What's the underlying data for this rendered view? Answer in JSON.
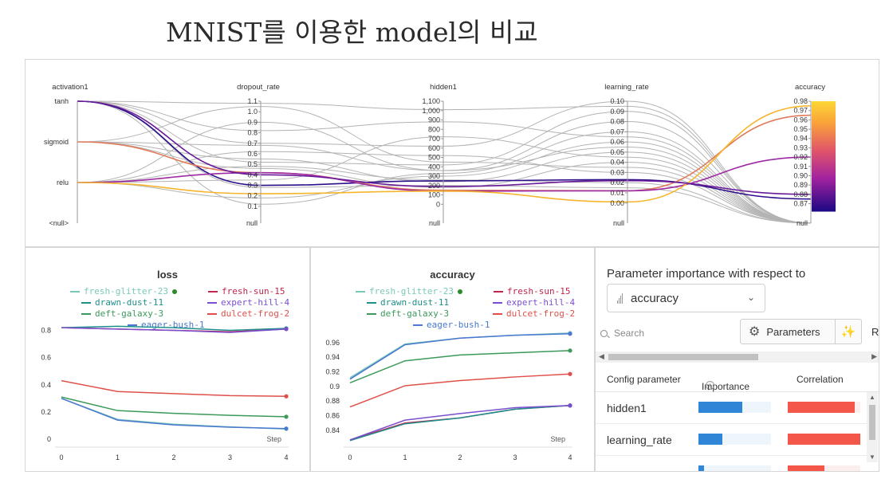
{
  "page_title": "MNIST를 이용한 model의 비교",
  "parallel_coords": {
    "axes": [
      "activation1",
      "dropout_rate",
      "hidden1",
      "learning_rate",
      "accuracy"
    ],
    "activation_ticks": [
      "tanh",
      "sigmoid",
      "relu",
      "<null>"
    ],
    "dropout_ticks": [
      "1.1",
      "1.0",
      "0.9",
      "0.8",
      "0.7",
      "0.6",
      "0.5",
      "0.4",
      "0.3",
      "0.2",
      "0.1",
      "null"
    ],
    "hidden_ticks": [
      "1,100",
      "1,000",
      "900",
      "800",
      "700",
      "600",
      "500",
      "400",
      "300",
      "200",
      "100",
      "0",
      "null"
    ],
    "lr_ticks": [
      "0.10",
      "0.09",
      "0.08",
      "0.07",
      "0.06",
      "0.05",
      "0.04",
      "0.03",
      "0.02",
      "0.01",
      "0.00",
      "null"
    ],
    "accuracy_ticks": [
      "0.98",
      "0.97",
      "0.96",
      "0.95",
      "0.94",
      "0.93",
      "0.92",
      "0.91",
      "0.90",
      "0.89",
      "0.88",
      "0.87",
      "null"
    ],
    "highlighted_runs": [
      {
        "activation": "tanh",
        "dropout_rate": 0.3,
        "hidden1": 250,
        "learning_rate": 0.023,
        "accuracy": 0.875,
        "color": "#2c0f8a"
      },
      {
        "activation": "sigmoid",
        "dropout_rate": 0.42,
        "hidden1": 150,
        "learning_rate": 0.012,
        "accuracy": 0.965,
        "color": "#e07b5a"
      },
      {
        "activation": "relu",
        "dropout_rate": 0.42,
        "hidden1": 140,
        "learning_rate": 0.012,
        "accuracy": 0.92,
        "color": "#9c2aa3"
      },
      {
        "activation": "relu",
        "dropout_rate": 0.22,
        "hidden1": 140,
        "learning_rate": 0.001,
        "accuracy": 0.975,
        "color": "#f7b52c"
      },
      {
        "activation": "tanh",
        "dropout_rate": 0.4,
        "hidden1": 190,
        "learning_rate": 0.022,
        "accuracy": 0.88,
        "color": "#6a1b9a"
      }
    ],
    "gray_runs": [
      [
        "tanh",
        1.08,
        1010,
        0.095
      ],
      [
        "tanh",
        0.7,
        620,
        0.1
      ],
      [
        "tanh",
        0.52,
        420,
        0.09
      ],
      [
        "tanh",
        0.12,
        330,
        0.07
      ],
      [
        "tanh",
        0.82,
        880,
        0.065
      ],
      [
        "sigmoid",
        0.68,
        360,
        0.055
      ],
      [
        "sigmoid",
        0.55,
        240,
        0.05
      ],
      [
        "sigmoid",
        0.46,
        180,
        0.04
      ],
      [
        "sigmoid",
        1.05,
        450,
        0.035
      ],
      [
        "relu",
        0.62,
        520,
        0.03
      ],
      [
        "relu",
        0.18,
        300,
        0.06
      ],
      [
        "relu",
        0.9,
        360,
        0.08
      ],
      [
        "relu",
        0.35,
        720,
        0.045
      ],
      [
        "relu",
        0.48,
        260,
        0.02
      ],
      [
        "tanh",
        0.28,
        200,
        0.015
      ]
    ]
  },
  "loss_chart": {
    "title": "loss",
    "step_label": "Step",
    "x_ticks": [
      "0",
      "1",
      "2",
      "3",
      "4"
    ],
    "y_ticks": [
      "0",
      "0.2",
      "0.4",
      "0.6",
      "0.8"
    ],
    "legend": [
      {
        "name": "fresh-glitter-23",
        "color": "#79c9b9"
      },
      {
        "name": "fresh-sun-15",
        "color": "#c2264c"
      },
      {
        "name": "drawn-dust-11",
        "color": "#1f8f8b"
      },
      {
        "name": "expert-hill-4",
        "color": "#7a4fcf"
      },
      {
        "name": "deft-galaxy-3",
        "color": "#3b9a5a"
      },
      {
        "name": "dulcet-frog-2",
        "color": "#e0504a"
      },
      {
        "name": "eager-bush-1",
        "color": "#4a78d0"
      }
    ]
  },
  "chart_data": [
    {
      "type": "line",
      "title": "loss",
      "xlabel": "Step",
      "ylabel": "",
      "x": [
        0,
        1,
        2,
        3,
        4
      ],
      "ylim": [
        0,
        0.85
      ],
      "series": [
        {
          "name": "fresh-glitter-23",
          "values": [
            0.3,
            0.145,
            0.11,
            0.09,
            0.075
          ]
        },
        {
          "name": "fresh-sun-15",
          "values": [
            0.82,
            0.81,
            0.8,
            0.79,
            0.81
          ]
        },
        {
          "name": "drawn-dust-11",
          "values": [
            0.82,
            0.83,
            0.82,
            0.8,
            0.815
          ]
        },
        {
          "name": "expert-hill-4",
          "values": [
            0.82,
            0.81,
            0.8,
            0.785,
            0.81
          ]
        },
        {
          "name": "deft-galaxy-3",
          "values": [
            0.31,
            0.21,
            0.19,
            0.175,
            0.165
          ]
        },
        {
          "name": "dulcet-frog-2",
          "values": [
            0.43,
            0.35,
            0.335,
            0.32,
            0.315
          ]
        },
        {
          "name": "eager-bush-1",
          "values": [
            0.3,
            0.14,
            0.105,
            0.088,
            0.078
          ]
        }
      ]
    },
    {
      "type": "line",
      "title": "accuracy",
      "xlabel": "Step",
      "ylabel": "",
      "x": [
        0,
        1,
        2,
        3,
        4
      ],
      "ylim": [
        0.828,
        0.975
      ],
      "series": [
        {
          "name": "fresh-glitter-23",
          "values": [
            0.912,
            0.958,
            0.966,
            0.97,
            0.973
          ]
        },
        {
          "name": "fresh-sun-15",
          "values": [
            0.827,
            0.85,
            0.857,
            0.869,
            0.874
          ]
        },
        {
          "name": "drawn-dust-11",
          "values": [
            0.826,
            0.849,
            0.857,
            0.869,
            0.874
          ]
        },
        {
          "name": "expert-hill-4",
          "values": [
            0.827,
            0.854,
            0.863,
            0.871,
            0.874
          ]
        },
        {
          "name": "deft-galaxy-3",
          "values": [
            0.905,
            0.935,
            0.943,
            0.946,
            0.949
          ]
        },
        {
          "name": "dulcet-frog-2",
          "values": [
            0.872,
            0.901,
            0.908,
            0.913,
            0.917
          ]
        },
        {
          "name": "eager-bush-1",
          "values": [
            0.91,
            0.957,
            0.966,
            0.97,
            0.972
          ]
        }
      ]
    }
  ],
  "acc_chart": {
    "title": "accuracy",
    "step_label": "Step",
    "x_ticks": [
      "0",
      "1",
      "2",
      "3",
      "4"
    ],
    "y_ticks": [
      "0.84",
      "0.86",
      "0.88",
      "0.9",
      "0.92",
      "0.94",
      "0.96"
    ]
  },
  "importance": {
    "title": "Parameter importance with respect to",
    "metric": "accuracy",
    "search_placeholder": "Search",
    "params_button": "Parameters",
    "cut_text": "Ro",
    "columns": [
      "Config parameter",
      "Importance",
      "Correlation"
    ],
    "rows": [
      {
        "name": "hidden1",
        "importance": 0.6,
        "correlation": 0.92
      },
      {
        "name": "learning_rate",
        "importance": 0.33,
        "correlation": 1.0
      },
      {
        "name": "",
        "importance": 0.08,
        "correlation": 0.5
      }
    ],
    "colors": {
      "importance": "#2f86d6",
      "correlation": "#f4574a",
      "track": "#eef5fb",
      "corr_track": "#fdeeee"
    }
  }
}
